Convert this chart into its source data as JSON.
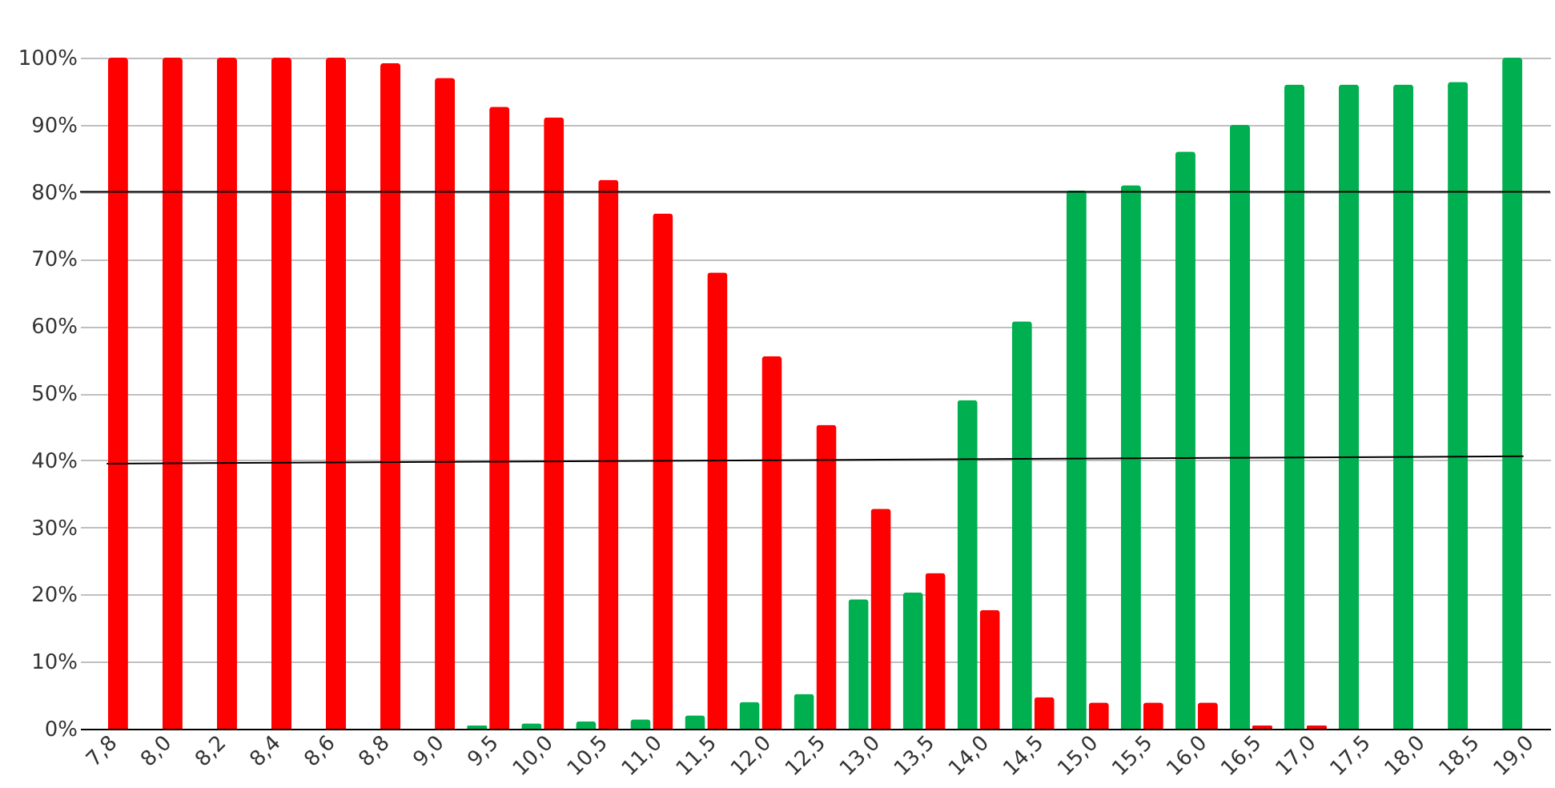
{
  "chart_data": {
    "type": "bar",
    "categories": [
      "7,8",
      "8,0",
      "8,2",
      "8,4",
      "8,6",
      "8,8",
      "9,0",
      "9,5",
      "10,0",
      "10,5",
      "11,0",
      "11,5",
      "12,0",
      "12,5",
      "13,0",
      "13,5",
      "14,0",
      "14,5",
      "15,0",
      "15,5",
      "16,0",
      "16,5",
      "17,0",
      "17,5",
      "18,0",
      "18,5",
      "19,0"
    ],
    "series": [
      {
        "color": "#00b050",
        "values": [
          0,
          0,
          0,
          0,
          0,
          0,
          0,
          0.5,
          0.8,
          1.1,
          1.4,
          2,
          4,
          5.2,
          19.3,
          20.3,
          49,
          60.7,
          80.2,
          81,
          86,
          90,
          96,
          96,
          96,
          96.4,
          100
        ]
      },
      {
        "color": "#ff0000",
        "values": [
          100,
          100,
          100,
          100,
          100,
          99.2,
          97,
          92.7,
          91.1,
          81.8,
          76.8,
          68,
          55.5,
          45.3,
          32.8,
          23.2,
          17.7,
          4.7,
          3.9,
          3.9,
          3.9,
          0.5,
          0.5,
          0,
          0,
          0,
          0
        ]
      },
      {
        "type": "line",
        "color": "#000000",
        "x": [
          "7,8",
          "19,0"
        ],
        "values": [
          39.5,
          40.6
        ]
      }
    ],
    "ylim": [
      0,
      100
    ],
    "yticks": [
      {
        "value": 0,
        "label": "0%"
      },
      {
        "value": 10,
        "label": "10%"
      },
      {
        "value": 20,
        "label": "20%"
      },
      {
        "value": 30,
        "label": "30%"
      },
      {
        "value": 40,
        "label": "40%"
      },
      {
        "value": 50,
        "label": "50%"
      },
      {
        "value": 60,
        "label": "60%"
      },
      {
        "value": 70,
        "label": "70%"
      },
      {
        "value": 80,
        "label": "80%"
      },
      {
        "value": 90,
        "label": "90%"
      },
      {
        "value": 100,
        "label": "100%"
      }
    ],
    "grid": "y",
    "ref_lines": [
      {
        "axis": "y",
        "value": 80,
        "color": "#000000"
      }
    ],
    "legend": false
  }
}
